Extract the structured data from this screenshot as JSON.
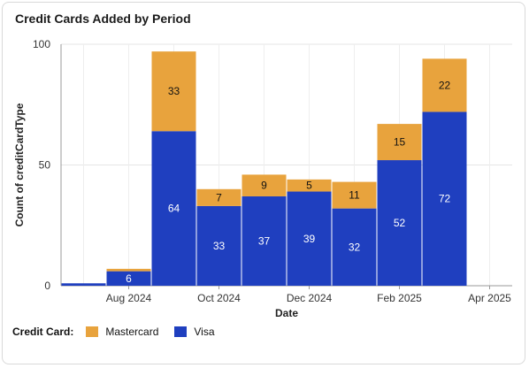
{
  "title": "Credit Cards Added by Period",
  "colors": {
    "Mastercard": "#E8A33D",
    "Visa": "#1F3FBF"
  },
  "legend": {
    "title": "Credit Card:",
    "items": [
      "Mastercard",
      "Visa"
    ]
  },
  "chart_data": {
    "type": "bar",
    "stacked": true,
    "title": "Credit Cards Added by Period",
    "xlabel": "Date",
    "ylabel": "Count of creditCardType",
    "ylim": [
      0,
      100
    ],
    "yticks": [
      0,
      50,
      100
    ],
    "categories": [
      "Jul 2024",
      "Aug 2024",
      "Sep 2024",
      "Oct 2024",
      "Nov 2024",
      "Dec 2024",
      "Jan 2025",
      "Feb 2025",
      "Mar 2025",
      "Apr 2025"
    ],
    "xtick_labels": [
      "Aug 2024",
      "Oct 2024",
      "Dec 2024",
      "Feb 2025",
      "Apr 2025"
    ],
    "series": [
      {
        "name": "Visa",
        "values": [
          1,
          6,
          64,
          33,
          37,
          39,
          32,
          52,
          72,
          0
        ],
        "labels": [
          null,
          "6",
          "64",
          "33",
          "37",
          "39",
          "32",
          "52",
          "72",
          null
        ]
      },
      {
        "name": "Mastercard",
        "values": [
          0,
          1,
          33,
          7,
          9,
          5,
          11,
          15,
          22,
          0
        ],
        "labels": [
          null,
          null,
          "33",
          "7",
          "9",
          "5",
          "11",
          "15",
          "22",
          null
        ]
      }
    ],
    "grid": true,
    "legend_position": "bottom-left"
  }
}
